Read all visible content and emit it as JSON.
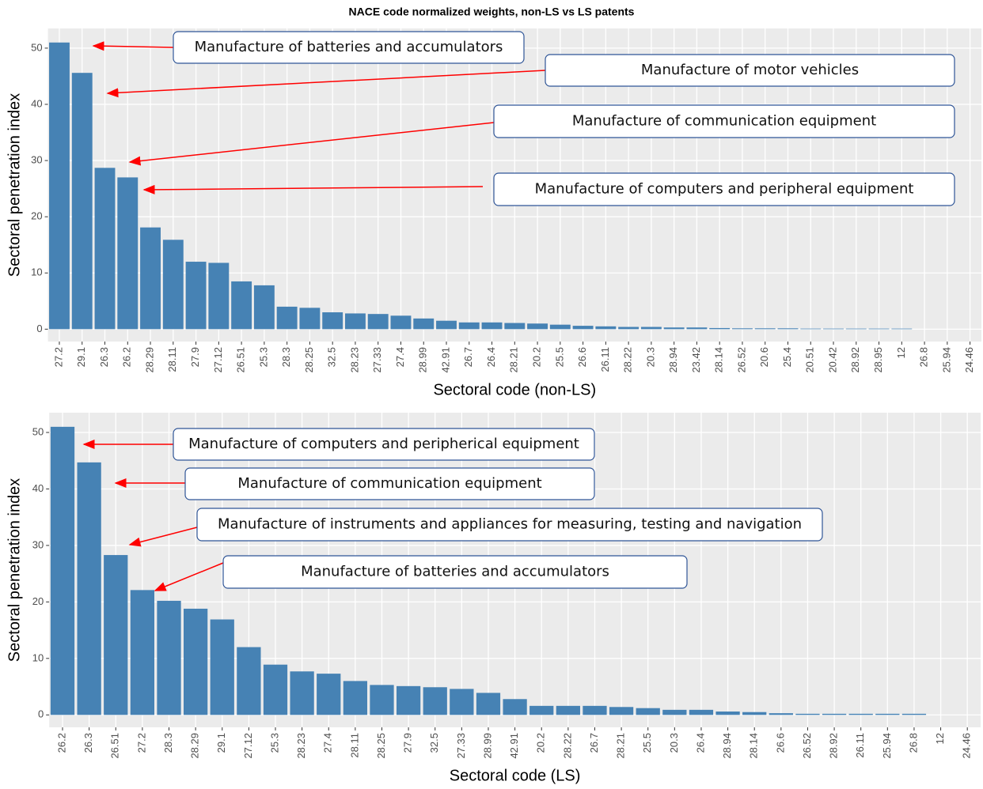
{
  "title": "NACE code normalized weights, non-LS vs LS patents",
  "chart_data": [
    {
      "type": "bar",
      "categories": [
        "27.2",
        "29.1",
        "26.3",
        "26.2",
        "28.29",
        "28.11",
        "27.9",
        "27.12",
        "26.51",
        "25.3",
        "28.3",
        "28.25",
        "32.5",
        "28.23",
        "27.33",
        "27.4",
        "28.99",
        "42.91",
        "26.7",
        "26.4",
        "28.21",
        "20.2",
        "25.5",
        "26.6",
        "26.11",
        "28.22",
        "20.3",
        "28.94",
        "23.42",
        "28.14",
        "26.52",
        "20.6",
        "25.4",
        "20.51",
        "20.42",
        "28.92",
        "28.95",
        "12",
        "26.8",
        "25.94",
        "24.46"
      ],
      "values": [
        51,
        45.6,
        28.7,
        27,
        18.1,
        15.9,
        12,
        11.8,
        8.5,
        7.8,
        4,
        3.8,
        3,
        2.8,
        2.7,
        2.4,
        1.9,
        1.5,
        1.2,
        1.2,
        1.1,
        1.0,
        0.8,
        0.6,
        0.5,
        0.4,
        0.4,
        0.3,
        0.3,
        0.2,
        0.15,
        0.15,
        0.15,
        0.1,
        0.1,
        0.1,
        0.1,
        0.1,
        0,
        0,
        0
      ],
      "color": "#4682b4",
      "ylim": [
        -2.2,
        53.5
      ],
      "yticks": [
        0,
        10,
        20,
        30,
        40,
        50
      ],
      "grid": true,
      "x_label": "Sectoral code (non-LS)",
      "y_label": "Sectoral penetration index",
      "annotations": [
        "Manufacture of batteries and accumulators",
        "Manufacture of motor vehicles",
        "Manufacture of communication equipment",
        "Manufacture of computers and peripheral equipment"
      ]
    },
    {
      "type": "bar",
      "categories": [
        "26.2",
        "26.3",
        "26.51",
        "27.2",
        "28.3",
        "28.29",
        "29.1",
        "27.12",
        "25.3",
        "28.23",
        "27.4",
        "28.11",
        "28.25",
        "27.9",
        "32.5",
        "27.33",
        "28.99",
        "42.91",
        "20.2",
        "28.22",
        "26.7",
        "28.21",
        "25.5",
        "20.3",
        "26.4",
        "28.94",
        "28.14",
        "26.6",
        "26.52",
        "28.92",
        "26.11",
        "25.94",
        "26.8",
        "12",
        "24.46"
      ],
      "values": [
        51,
        44.7,
        28.3,
        22.1,
        20.2,
        18.8,
        16.9,
        12,
        8.9,
        7.7,
        7.3,
        6,
        5.3,
        5.1,
        4.9,
        4.6,
        3.9,
        2.8,
        1.6,
        1.6,
        1.6,
        1.4,
        1.2,
        0.9,
        0.9,
        0.6,
        0.5,
        0.3,
        0.2,
        0.2,
        0.2,
        0.2,
        0.2,
        0,
        0
      ],
      "color": "#4682b4",
      "ylim": [
        -2.2,
        53.5
      ],
      "yticks": [
        0,
        10,
        20,
        30,
        40,
        50
      ],
      "grid": true,
      "x_label": "Sectoral code (LS)",
      "y_label": "Sectoral penetration index",
      "annotations": [
        "Manufacture of computers and peripherical equipment",
        "Manufacture of communication equipment",
        "Manufacture of instruments and appliances for measuring, testing and navigation",
        "Manufacture of batteries and accumulators"
      ]
    }
  ]
}
